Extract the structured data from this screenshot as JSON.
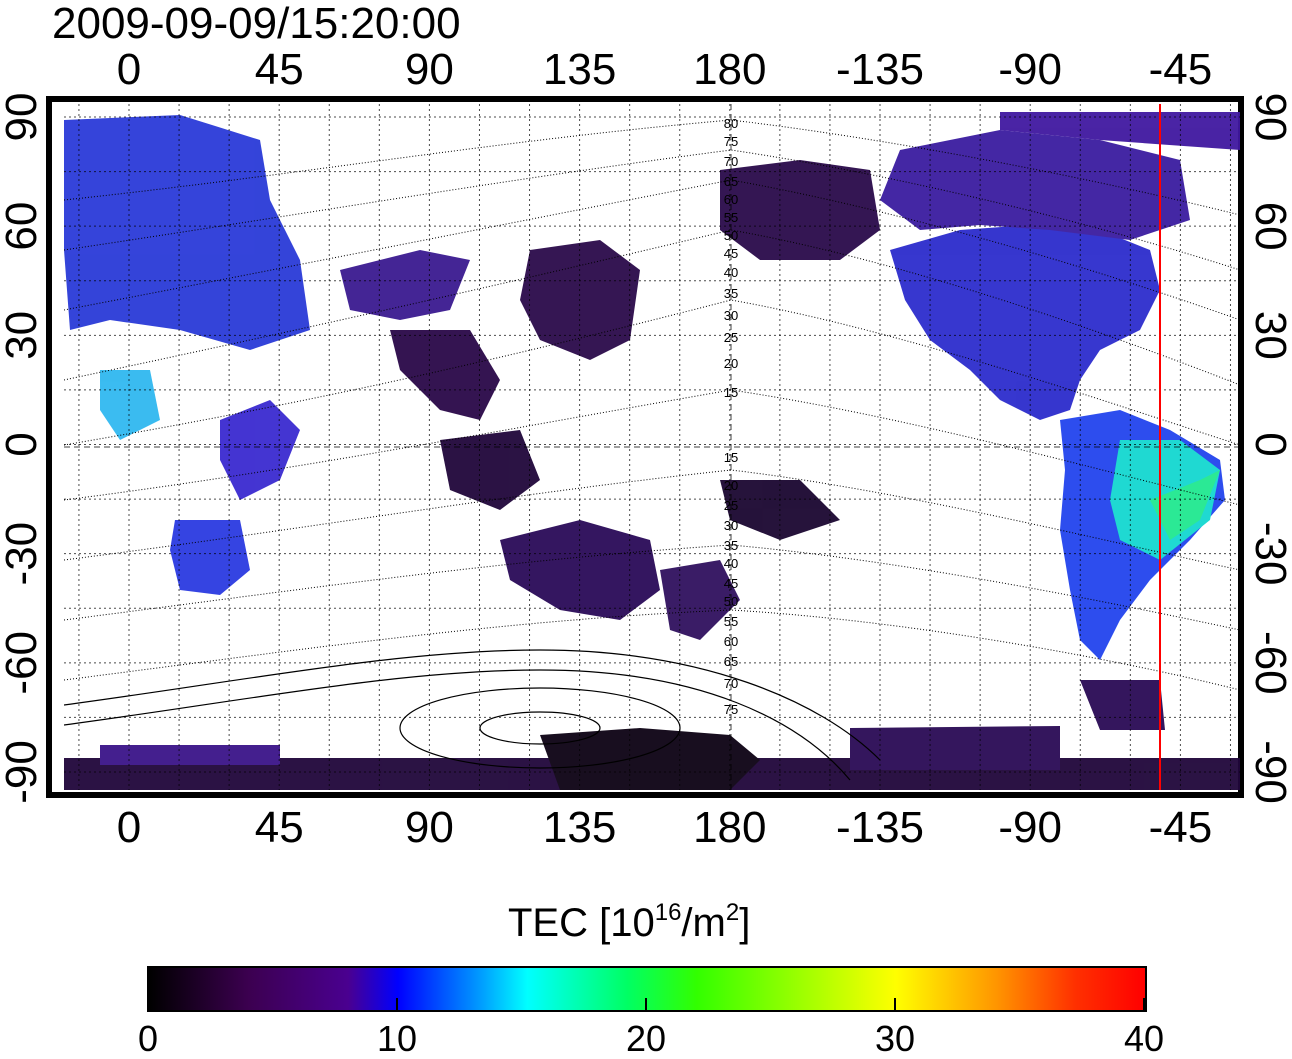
{
  "title": "2009-09-09/15:20:00",
  "colorbar": {
    "label": "TEC  [10",
    "label_sup": "16",
    "label_mid": "/m",
    "label_sup2": "2",
    "label_end": "]",
    "ticks": [
      "0",
      "10",
      "20",
      "30",
      "40"
    ],
    "range": [
      0,
      40
    ],
    "colormap": [
      "#000000",
      "#4a0090",
      "#0000ff",
      "#00ffff",
      "#00ff64",
      "#ffff00",
      "#ff9600",
      "#ff0000"
    ]
  },
  "axes": {
    "x_top_ticks": [
      "0",
      "45",
      "90",
      "135",
      "180",
      "-135",
      "-90",
      "-45"
    ],
    "x_bottom_ticks": [
      "0",
      "45",
      "90",
      "135",
      "180",
      "-135",
      "-90",
      "-45"
    ],
    "y_left_ticks": [
      "90",
      "60",
      "30",
      "0",
      "-30",
      "-60",
      "-90"
    ],
    "y_right_ticks": [
      "90",
      "60",
      "30",
      "0",
      "-30",
      "-60",
      "-90"
    ],
    "grid": "dotted, 15 degree spacing"
  },
  "contour_labels_north": [
    "80",
    "75",
    "70",
    "65",
    "60",
    "55",
    "50",
    "45",
    "40",
    "35",
    "30",
    "25",
    "20",
    "15"
  ],
  "contour_labels_south": [
    "15",
    "20",
    "25",
    "30",
    "35",
    "40",
    "45",
    "50",
    "55",
    "60",
    "65",
    "70",
    "75"
  ],
  "marker_line": {
    "longitude": -51,
    "color": "#ff0000"
  }
}
